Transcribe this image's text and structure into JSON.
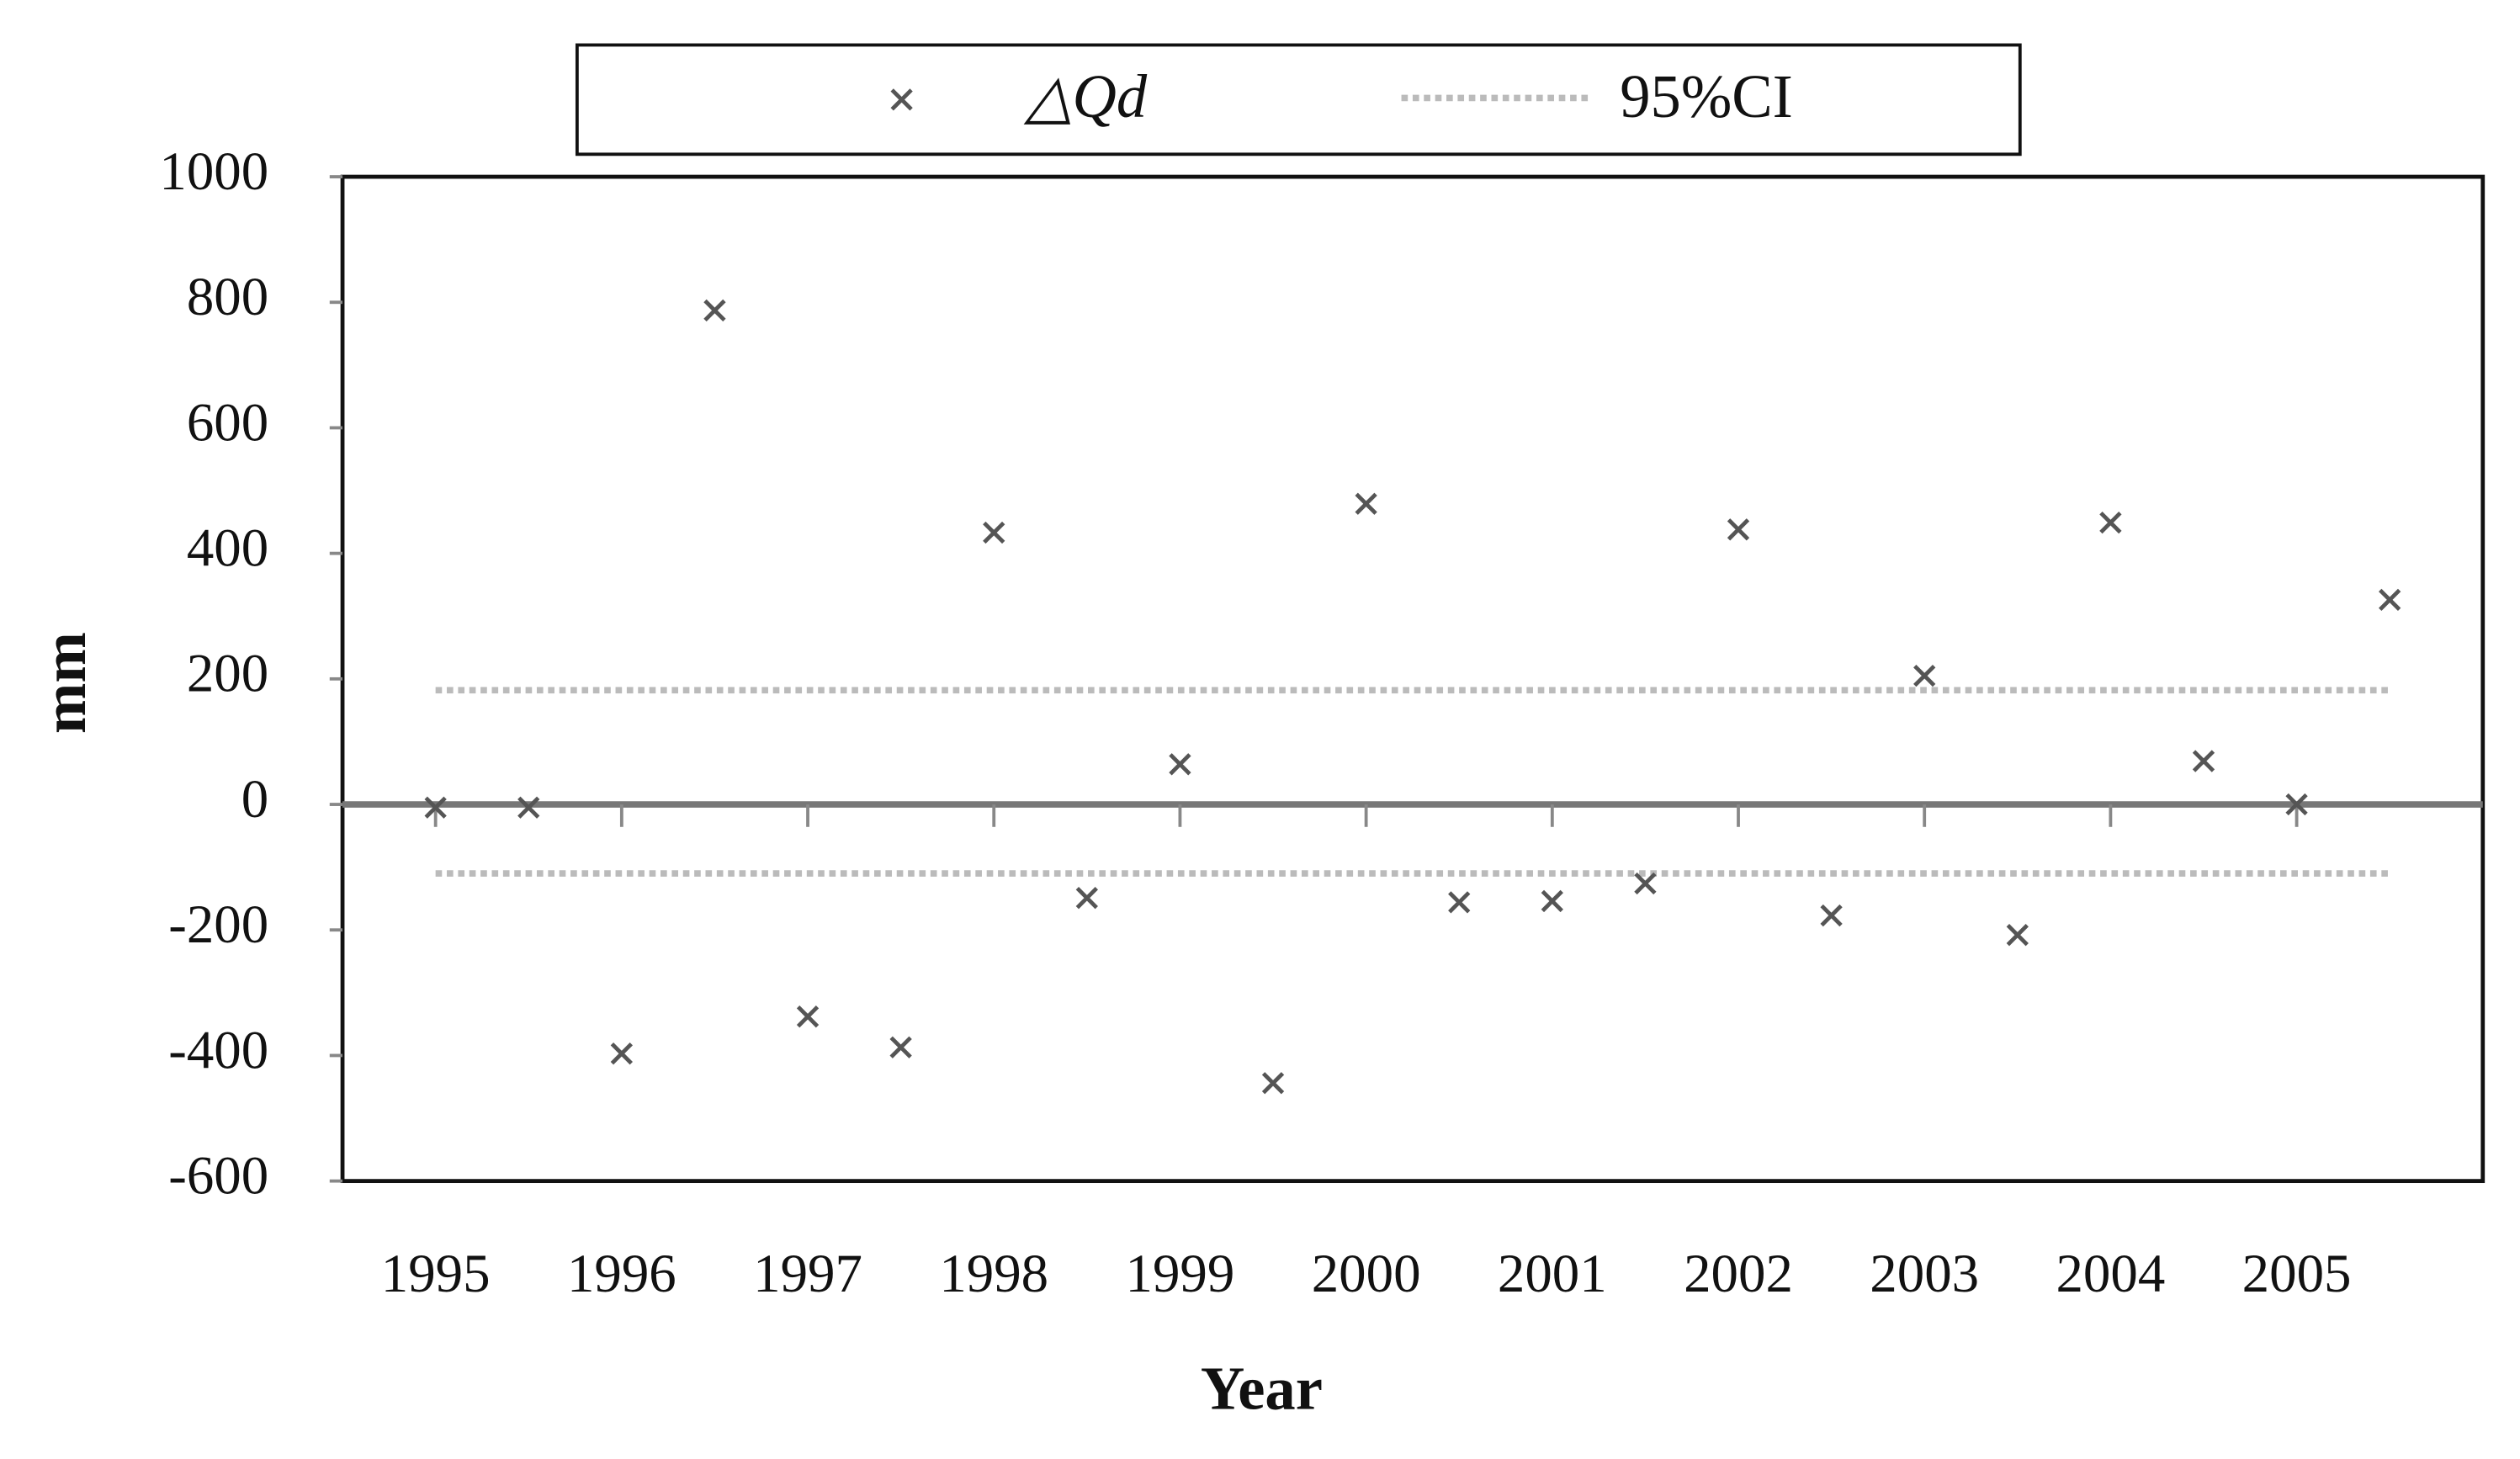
{
  "chart_data": {
    "type": "scatter",
    "x_label": "Year",
    "y_label": "mm",
    "xlim": [
      1994.5,
      2006
    ],
    "xticks": [
      1995,
      1996,
      1997,
      1998,
      1999,
      2000,
      2001,
      2002,
      2003,
      2004,
      2005
    ],
    "ylim": [
      -600,
      1000
    ],
    "yticks": [
      -600,
      -400,
      -200,
      0,
      200,
      400,
      600,
      800,
      1000
    ],
    "series": [
      {
        "name": "△Qd",
        "color": "#555555",
        "x": [
          1995,
          1995.5,
          1996,
          1996.5,
          1997,
          1997.5,
          1998,
          1998.5,
          1999,
          1999.5,
          2000,
          2000.5,
          2001,
          2001.5,
          2002,
          2002.5,
          2003,
          2003.5,
          2004,
          2004.5,
          2005,
          2005.5
        ],
        "values": [
          -5,
          -5,
          -397,
          787,
          -338,
          -387,
          433,
          -149,
          64,
          -444,
          479,
          -156,
          -154,
          -126,
          438,
          -177,
          205,
          -208,
          449,
          69,
          0,
          326
        ]
      }
    ],
    "ci": {
      "name": "95%CI",
      "color": "#bbbbbb",
      "x": [
        1995,
        2005.5
      ],
      "values": [
        182,
        -110
      ]
    }
  }
}
